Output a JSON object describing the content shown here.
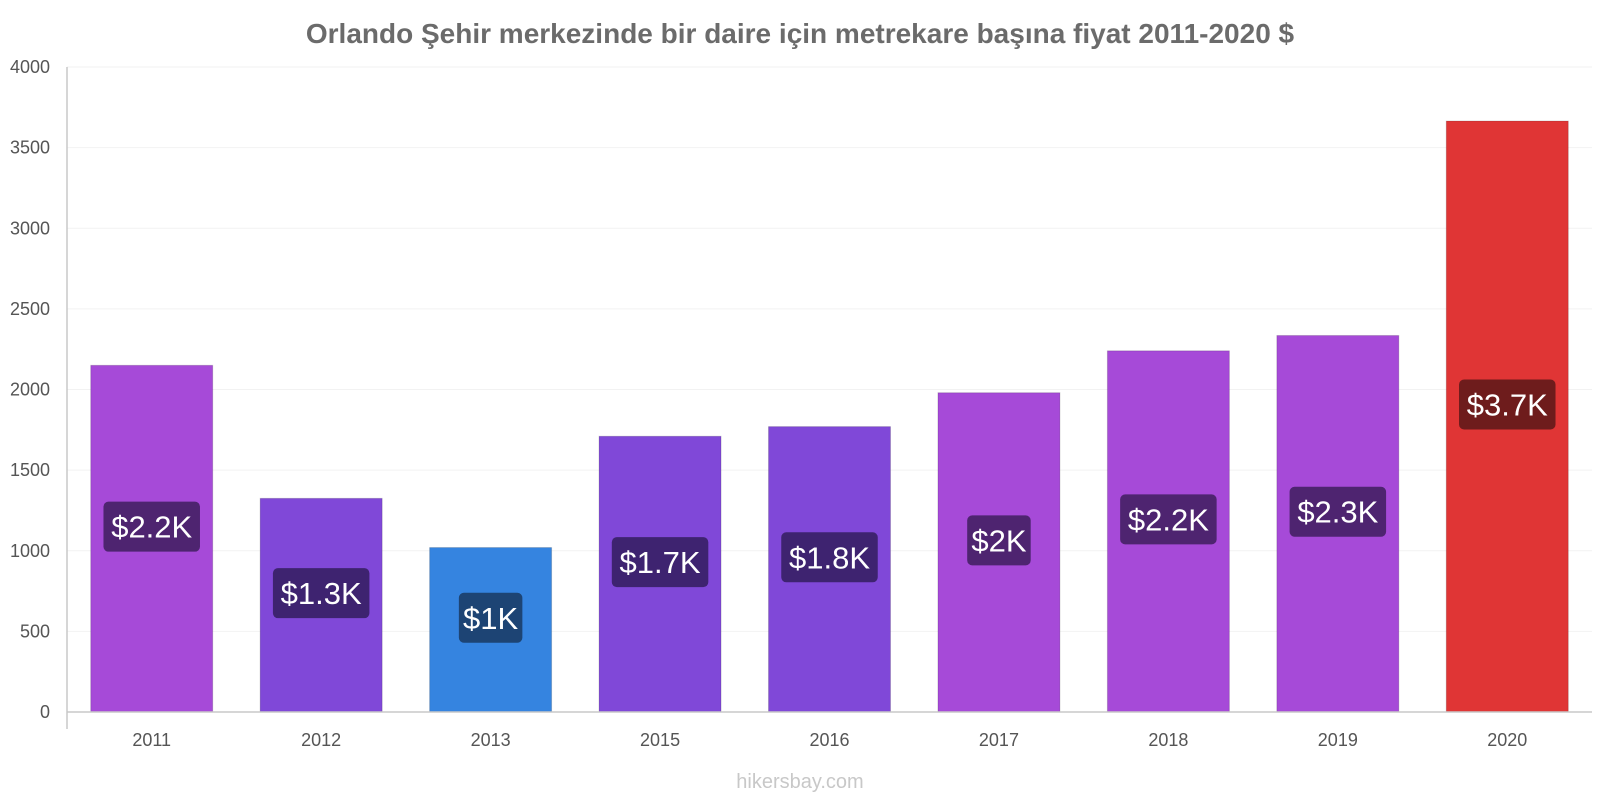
{
  "chart_data": {
    "type": "bar",
    "title": "Orlando Şehir merkezinde bir daire için metrekare başına fiyat 2011-2020 $",
    "xlabel": "",
    "ylabel": "",
    "ylim": [
      0,
      4000
    ],
    "yticks": [
      0,
      500,
      1000,
      1500,
      2000,
      2500,
      3000,
      3500,
      4000
    ],
    "categories": [
      "2011",
      "2012",
      "2013",
      "2015",
      "2016",
      "2017",
      "2018",
      "2019",
      "2020"
    ],
    "values": [
      2150,
      1325,
      1020,
      1710,
      1770,
      1980,
      2240,
      2335,
      3665
    ],
    "data_labels": [
      "$2.2K",
      "$1.3K",
      "$1K",
      "$1.7K",
      "$1.8K",
      "$2K",
      "$2.2K",
      "$2.3K",
      "$3.7K"
    ],
    "bar_colors": [
      "#a64ad8",
      "#8048d8",
      "#3584e0",
      "#8048d8",
      "#8048d8",
      "#a64ad8",
      "#a64ad8",
      "#a64ad8",
      "#e03535"
    ],
    "label_colors": [
      "#4e2470",
      "#3e2370",
      "#1d4474",
      "#3e2370",
      "#3e2370",
      "#4e2470",
      "#4e2470",
      "#4e2470",
      "#6e1c1c"
    ],
    "grid": true,
    "legend": "none"
  },
  "footer": {
    "credit": "hikersbay.com"
  }
}
